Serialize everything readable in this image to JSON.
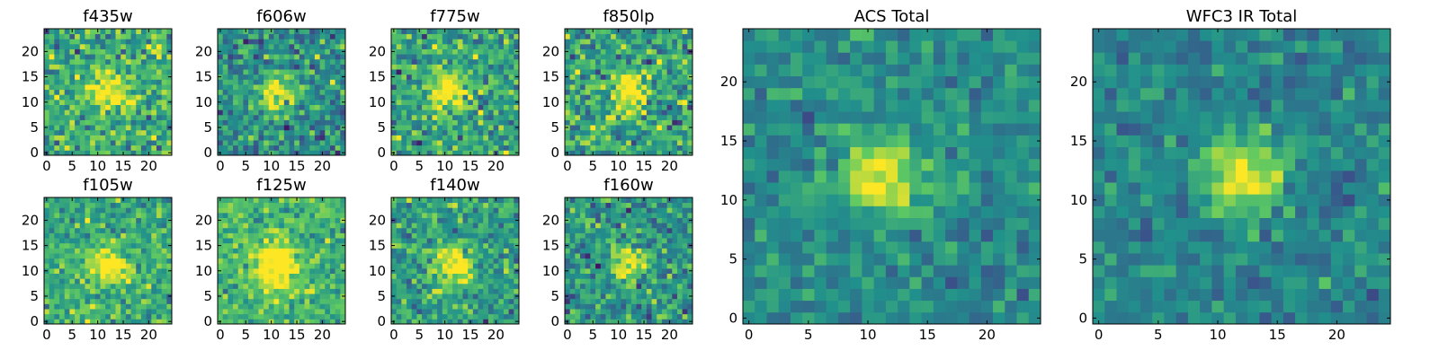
{
  "figure": {
    "colormap": "viridis",
    "colors": [
      "#440154",
      "#3b528b",
      "#21918c",
      "#5ec962",
      "#fde725"
    ],
    "background": "#ffffff",
    "axis_color": "#000000"
  },
  "chart_data": [
    {
      "type": "heatmap",
      "title": "f435w",
      "x_ticks": [
        "0",
        "5",
        "10",
        "15",
        "20"
      ],
      "y_ticks": [
        "0",
        "5",
        "10",
        "15",
        "20"
      ],
      "xlim": [
        0,
        25
      ],
      "ylim": [
        0,
        25
      ],
      "grid": false,
      "source_center": [
        12,
        12
      ],
      "source_radius": 2.5,
      "noise_level": 0.9,
      "background_level": 0.62
    },
    {
      "type": "heatmap",
      "title": "f606w",
      "x_ticks": [
        "0",
        "5",
        "10",
        "15",
        "20"
      ],
      "y_ticks": [
        "0",
        "5",
        "10",
        "15",
        "20"
      ],
      "xlim": [
        0,
        25
      ],
      "ylim": [
        0,
        25
      ],
      "grid": false,
      "source_center": [
        11,
        12
      ],
      "source_radius": 2.5,
      "noise_level": 0.8,
      "background_level": 0.5
    },
    {
      "type": "heatmap",
      "title": "f775w",
      "x_ticks": [
        "0",
        "5",
        "10",
        "15",
        "20"
      ],
      "y_ticks": [
        "0",
        "5",
        "10",
        "15",
        "20"
      ],
      "xlim": [
        0,
        25
      ],
      "ylim": [
        0,
        25
      ],
      "grid": false,
      "source_center": [
        11,
        12
      ],
      "source_radius": 2.5,
      "noise_level": 0.85,
      "background_level": 0.58
    },
    {
      "type": "heatmap",
      "title": "f850lp",
      "x_ticks": [
        "0",
        "5",
        "10",
        "15",
        "20"
      ],
      "y_ticks": [
        "0",
        "5",
        "10",
        "15",
        "20"
      ],
      "xlim": [
        0,
        25
      ],
      "ylim": [
        0,
        25
      ],
      "grid": false,
      "source_center": [
        12,
        12
      ],
      "source_radius": 2.5,
      "noise_level": 0.9,
      "background_level": 0.58
    },
    {
      "type": "heatmap",
      "title": "f105w",
      "x_ticks": [
        "0",
        "5",
        "10",
        "15",
        "20"
      ],
      "y_ticks": [
        "0",
        "5",
        "10",
        "15",
        "20"
      ],
      "xlim": [
        0,
        25
      ],
      "ylim": [
        0,
        25
      ],
      "grid": false,
      "source_center": [
        12,
        11
      ],
      "source_radius": 2.5,
      "noise_level": 0.7,
      "background_level": 0.62
    },
    {
      "type": "heatmap",
      "title": "f125w",
      "x_ticks": [
        "0",
        "5",
        "10",
        "15",
        "20"
      ],
      "y_ticks": [
        "0",
        "5",
        "10",
        "15",
        "20"
      ],
      "xlim": [
        0,
        25
      ],
      "ylim": [
        0,
        25
      ],
      "grid": false,
      "source_center": [
        11,
        11
      ],
      "source_radius": 3,
      "noise_level": 0.65,
      "background_level": 0.66
    },
    {
      "type": "heatmap",
      "title": "f140w",
      "x_ticks": [
        "0",
        "5",
        "10",
        "15",
        "20"
      ],
      "y_ticks": [
        "0",
        "5",
        "10",
        "15",
        "20"
      ],
      "xlim": [
        0,
        25
      ],
      "ylim": [
        0,
        25
      ],
      "grid": false,
      "source_center": [
        12,
        11
      ],
      "source_radius": 2.5,
      "noise_level": 0.75,
      "background_level": 0.56
    },
    {
      "type": "heatmap",
      "title": "f160w",
      "x_ticks": [
        "0",
        "5",
        "10",
        "15",
        "20"
      ],
      "y_ticks": [
        "0",
        "5",
        "10",
        "15",
        "20"
      ],
      "xlim": [
        0,
        25
      ],
      "ylim": [
        0,
        25
      ],
      "grid": false,
      "source_center": [
        12,
        12
      ],
      "source_radius": 2.2,
      "noise_level": 0.8,
      "background_level": 0.52
    },
    {
      "type": "heatmap",
      "title": "ACS Total",
      "x_ticks": [
        "0",
        "5",
        "10",
        "15",
        "20"
      ],
      "y_ticks": [
        "0",
        "5",
        "10",
        "15",
        "20"
      ],
      "xlim": [
        0,
        25
      ],
      "ylim": [
        0,
        25
      ],
      "grid": false,
      "source_center": [
        11,
        12
      ],
      "source_radius": 2.3,
      "noise_level": 0.5,
      "background_level": 0.48
    },
    {
      "type": "heatmap",
      "title": "WFC3 IR Total",
      "x_ticks": [
        "0",
        "5",
        "10",
        "15",
        "20"
      ],
      "y_ticks": [
        "0",
        "5",
        "10",
        "15",
        "20"
      ],
      "xlim": [
        0,
        25
      ],
      "ylim": [
        0,
        25
      ],
      "grid": false,
      "source_center": [
        12,
        12
      ],
      "source_radius": 2.3,
      "noise_level": 0.45,
      "background_level": 0.45
    }
  ]
}
